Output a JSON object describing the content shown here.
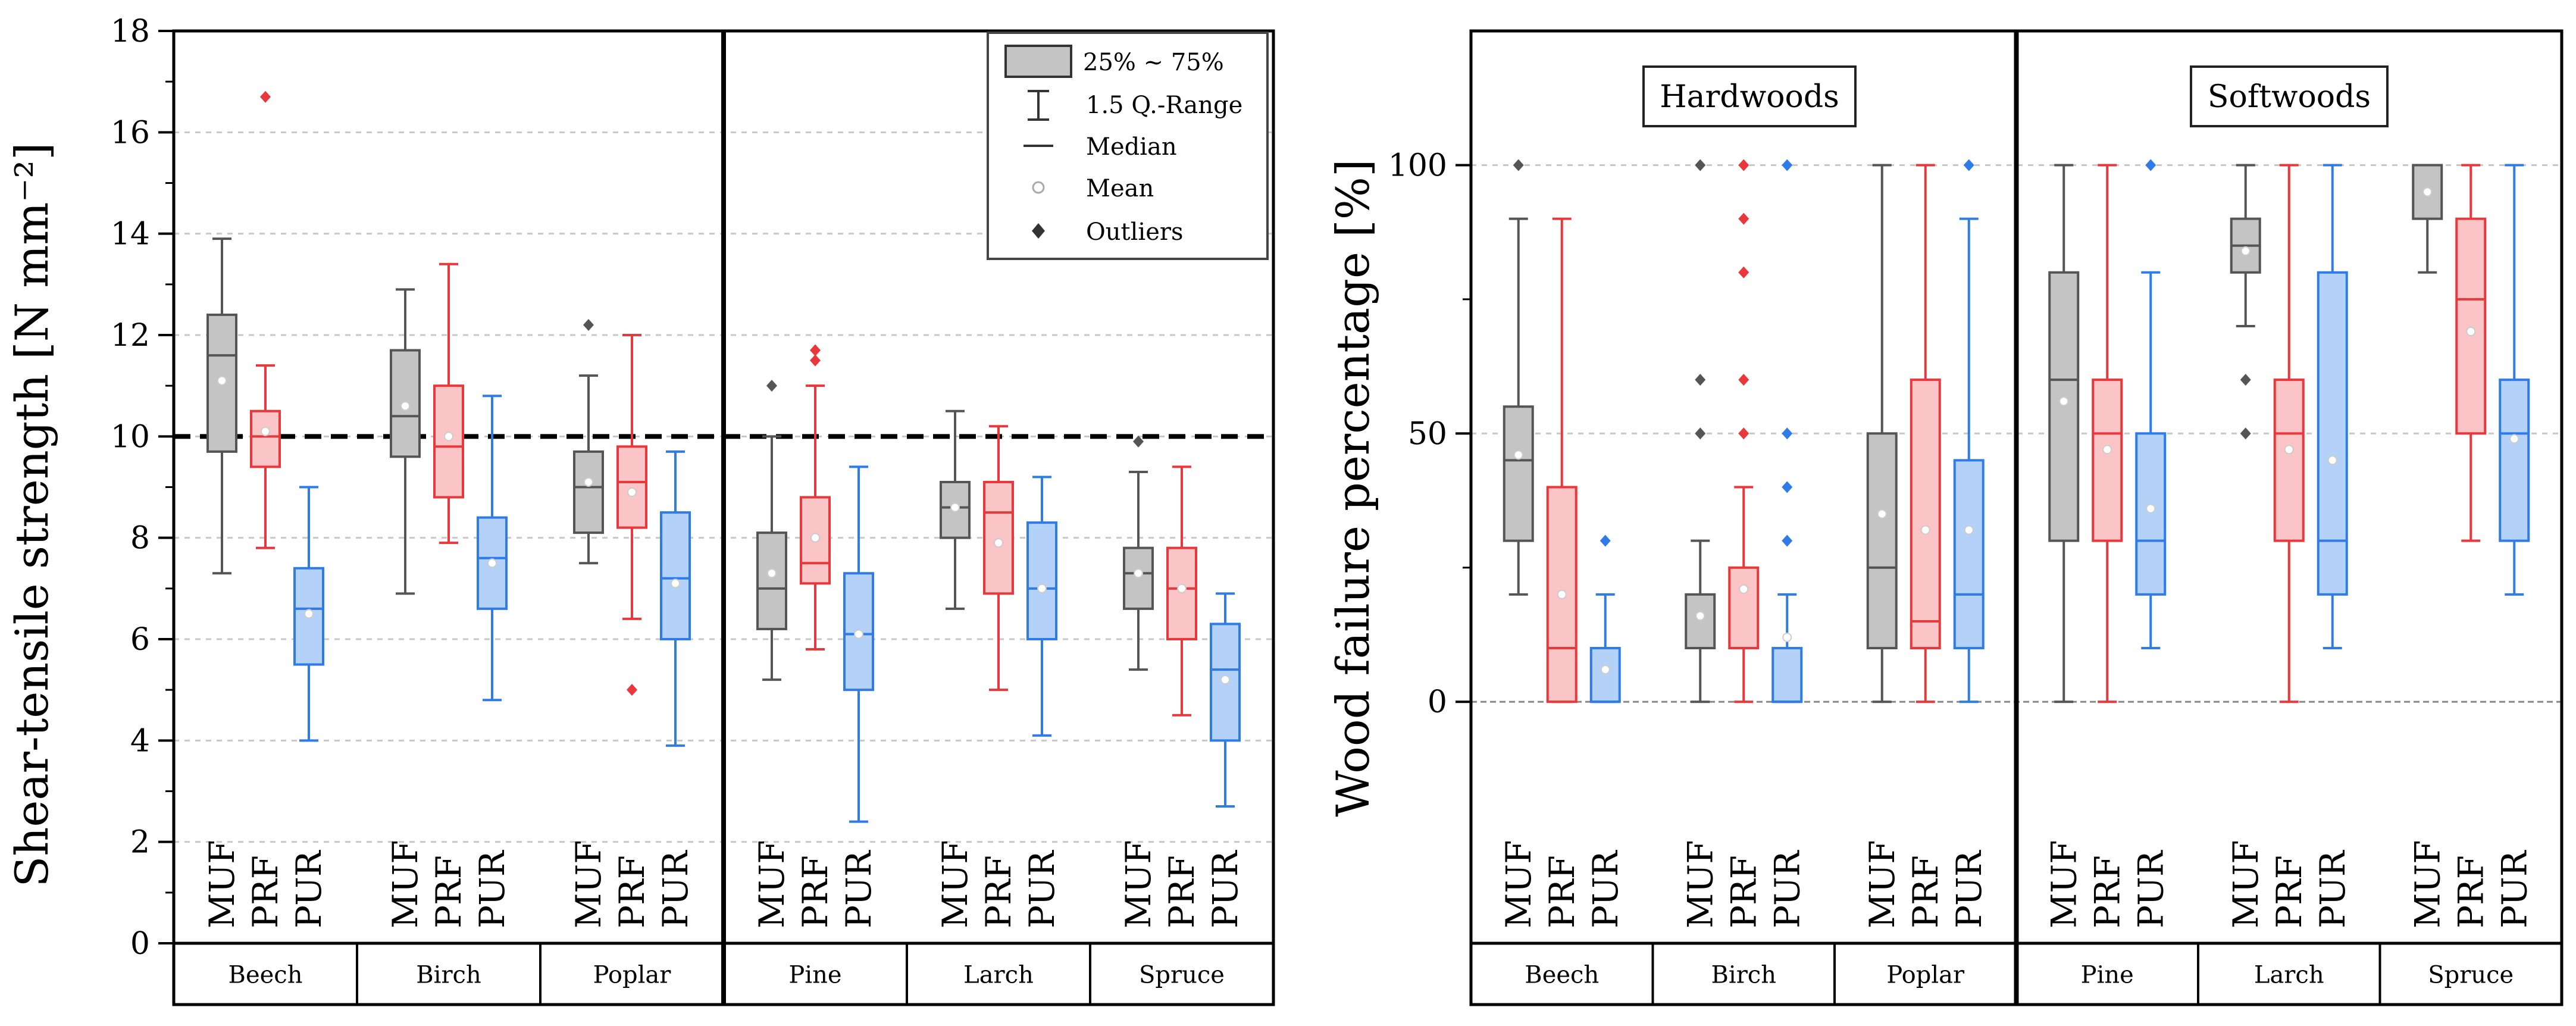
{
  "colors": {
    "MUF": "#555555",
    "PRF": "#e8383b",
    "PUR": "#2f7be8",
    "MUF_fill": "#c4c4c4",
    "PRF_fill": "#fbc4c6",
    "PUR_fill": "#b4d1f8"
  },
  "chart_data": [
    {
      "type": "boxplot",
      "ylabel": "Shear-tensile strength [N mm⁻²]",
      "ylim": [
        0,
        18
      ],
      "yticks": [
        "0",
        "2",
        "4",
        "6",
        "8",
        "10",
        "12",
        "14",
        "16",
        "18"
      ],
      "ytick_values": [
        0,
        2,
        4,
        6,
        8,
        10,
        12,
        14,
        16,
        18
      ],
      "gridlines": [
        2,
        4,
        6,
        8,
        10,
        12,
        14,
        16
      ],
      "reference_line": 10,
      "adhesives": [
        "MUF",
        "PRF",
        "PUR"
      ],
      "species": [
        "Beech",
        "Birch",
        "Poplar",
        "Pine",
        "Larch",
        "Spruce"
      ],
      "divider_after": 3,
      "legend": {
        "box_label": "25% ~ 75%",
        "whisker_label": "1.5 Q.-Range",
        "median_label": "Median",
        "mean_label": "Mean",
        "outlier_label": "Outliers"
      },
      "boxes": [
        {
          "species": "Beech",
          "adhesive": "MUF",
          "lo": 7.3,
          "q1": 9.7,
          "med": 11.6,
          "q3": 12.4,
          "hi": 13.9,
          "mean": 11.1,
          "outliers": []
        },
        {
          "species": "Beech",
          "adhesive": "PRF",
          "lo": 7.8,
          "q1": 9.4,
          "med": 10.0,
          "q3": 10.5,
          "hi": 11.4,
          "mean": 10.1,
          "outliers": [
            16.7
          ]
        },
        {
          "species": "Beech",
          "adhesive": "PUR",
          "lo": 4.0,
          "q1": 5.5,
          "med": 6.6,
          "q3": 7.4,
          "hi": 9.0,
          "mean": 6.5,
          "outliers": []
        },
        {
          "species": "Birch",
          "adhesive": "MUF",
          "lo": 6.9,
          "q1": 9.6,
          "med": 10.4,
          "q3": 11.7,
          "hi": 12.9,
          "mean": 10.6,
          "outliers": []
        },
        {
          "species": "Birch",
          "adhesive": "PRF",
          "lo": 7.9,
          "q1": 8.8,
          "med": 9.8,
          "q3": 11.0,
          "hi": 13.4,
          "mean": 10.0,
          "outliers": []
        },
        {
          "species": "Birch",
          "adhesive": "PUR",
          "lo": 4.8,
          "q1": 6.6,
          "med": 7.6,
          "q3": 8.4,
          "hi": 10.8,
          "mean": 7.5,
          "outliers": []
        },
        {
          "species": "Poplar",
          "adhesive": "MUF",
          "lo": 7.5,
          "q1": 8.1,
          "med": 9.0,
          "q3": 9.7,
          "hi": 11.2,
          "mean": 9.1,
          "outliers": [
            12.2
          ]
        },
        {
          "species": "Poplar",
          "adhesive": "PRF",
          "lo": 6.4,
          "q1": 8.2,
          "med": 9.1,
          "q3": 9.8,
          "hi": 12.0,
          "mean": 8.9,
          "outliers": [
            5.0
          ]
        },
        {
          "species": "Poplar",
          "adhesive": "PUR",
          "lo": 3.9,
          "q1": 6.0,
          "med": 7.2,
          "q3": 8.5,
          "hi": 9.7,
          "mean": 7.1,
          "outliers": []
        },
        {
          "species": "Pine",
          "adhesive": "MUF",
          "lo": 5.2,
          "q1": 6.2,
          "med": 7.0,
          "q3": 8.1,
          "hi": 10.0,
          "mean": 7.3,
          "outliers": [
            11.0
          ]
        },
        {
          "species": "Pine",
          "adhesive": "PRF",
          "lo": 5.8,
          "q1": 7.1,
          "med": 7.5,
          "q3": 8.8,
          "hi": 11.0,
          "mean": 8.0,
          "outliers": [
            11.5,
            11.7
          ]
        },
        {
          "species": "Pine",
          "adhesive": "PUR",
          "lo": 2.4,
          "q1": 5.0,
          "med": 6.1,
          "q3": 7.3,
          "hi": 9.4,
          "mean": 6.1,
          "outliers": []
        },
        {
          "species": "Larch",
          "adhesive": "MUF",
          "lo": 6.6,
          "q1": 8.0,
          "med": 8.6,
          "q3": 9.1,
          "hi": 10.5,
          "mean": 8.6,
          "outliers": []
        },
        {
          "species": "Larch",
          "adhesive": "PRF",
          "lo": 5.0,
          "q1": 6.9,
          "med": 8.5,
          "q3": 9.1,
          "hi": 10.2,
          "mean": 7.9,
          "outliers": []
        },
        {
          "species": "Larch",
          "adhesive": "PUR",
          "lo": 4.1,
          "q1": 6.0,
          "med": 7.0,
          "q3": 8.3,
          "hi": 9.2,
          "mean": 7.0,
          "outliers": []
        },
        {
          "species": "Spruce",
          "adhesive": "MUF",
          "lo": 5.4,
          "q1": 6.6,
          "med": 7.3,
          "q3": 7.8,
          "hi": 9.3,
          "mean": 7.3,
          "outliers": [
            9.9
          ]
        },
        {
          "species": "Spruce",
          "adhesive": "PRF",
          "lo": 4.5,
          "q1": 6.0,
          "med": 7.0,
          "q3": 7.8,
          "hi": 9.4,
          "mean": 7.0,
          "outliers": []
        },
        {
          "species": "Spruce",
          "adhesive": "PUR",
          "lo": 2.7,
          "q1": 4.0,
          "med": 5.4,
          "q3": 6.3,
          "hi": 6.9,
          "mean": 5.2,
          "outliers": []
        }
      ]
    },
    {
      "type": "boxplot",
      "ylabel": "Wood failure percentage [%]",
      "ylim": [
        -45,
        125
      ],
      "yticks": [
        "0",
        "50",
        "100"
      ],
      "ytick_values": [
        0,
        50,
        100
      ],
      "gridlines": [
        50,
        100
      ],
      "zero_line": 0,
      "adhesives": [
        "MUF",
        "PRF",
        "PUR"
      ],
      "species": [
        "Beech",
        "Birch",
        "Poplar",
        "Pine",
        "Larch",
        "Spruce"
      ],
      "divider_after": 3,
      "group_labels": [
        "Hardwoods",
        "Softwoods"
      ],
      "boxes": [
        {
          "species": "Beech",
          "adhesive": "MUF",
          "lo": 20,
          "q1": 30,
          "med": 45,
          "q3": 55,
          "hi": 90,
          "mean": 46,
          "outliers": [
            100
          ]
        },
        {
          "species": "Beech",
          "adhesive": "PRF",
          "lo": 0,
          "q1": 0,
          "med": 10,
          "q3": 40,
          "hi": 90,
          "mean": 20,
          "outliers": []
        },
        {
          "species": "Beech",
          "adhesive": "PUR",
          "lo": 0,
          "q1": 0,
          "med": 0,
          "q3": 10,
          "hi": 20,
          "mean": 6,
          "outliers": [
            30
          ]
        },
        {
          "species": "Birch",
          "adhesive": "MUF",
          "lo": 0,
          "q1": 10,
          "med": 10,
          "q3": 20,
          "hi": 30,
          "mean": 16,
          "outliers": [
            50,
            60,
            100
          ]
        },
        {
          "species": "Birch",
          "adhesive": "PRF",
          "lo": 0,
          "q1": 10,
          "med": 10,
          "q3": 25,
          "hi": 40,
          "mean": 21,
          "outliers": [
            50,
            60,
            80,
            90,
            100
          ]
        },
        {
          "species": "Birch",
          "adhesive": "PUR",
          "lo": 0,
          "q1": 0,
          "med": 0,
          "q3": 10,
          "hi": 20,
          "mean": 12,
          "outliers": [
            30,
            40,
            50,
            100
          ]
        },
        {
          "species": "Poplar",
          "adhesive": "MUF",
          "lo": 0,
          "q1": 10,
          "med": 25,
          "q3": 50,
          "hi": 100,
          "mean": 35,
          "outliers": []
        },
        {
          "species": "Poplar",
          "adhesive": "PRF",
          "lo": 0,
          "q1": 10,
          "med": 15,
          "q3": 60,
          "hi": 100,
          "mean": 32,
          "outliers": []
        },
        {
          "species": "Poplar",
          "adhesive": "PUR",
          "lo": 0,
          "q1": 10,
          "med": 20,
          "q3": 45,
          "hi": 90,
          "mean": 32,
          "outliers": [
            100
          ]
        },
        {
          "species": "Pine",
          "adhesive": "MUF",
          "lo": 0,
          "q1": 30,
          "med": 60,
          "q3": 80,
          "hi": 100,
          "mean": 56,
          "outliers": []
        },
        {
          "species": "Pine",
          "adhesive": "PRF",
          "lo": 0,
          "q1": 30,
          "med": 50,
          "q3": 60,
          "hi": 100,
          "mean": 47,
          "outliers": []
        },
        {
          "species": "Pine",
          "adhesive": "PUR",
          "lo": 10,
          "q1": 20,
          "med": 30,
          "q3": 50,
          "hi": 80,
          "mean": 36,
          "outliers": [
            100
          ]
        },
        {
          "species": "Larch",
          "adhesive": "MUF",
          "lo": 70,
          "q1": 80,
          "med": 85,
          "q3": 90,
          "hi": 100,
          "mean": 84,
          "outliers": [
            50,
            60
          ]
        },
        {
          "species": "Larch",
          "adhesive": "PRF",
          "lo": 0,
          "q1": 30,
          "med": 50,
          "q3": 60,
          "hi": 100,
          "mean": 47,
          "outliers": []
        },
        {
          "species": "Larch",
          "adhesive": "PUR",
          "lo": 10,
          "q1": 20,
          "med": 30,
          "q3": 80,
          "hi": 100,
          "mean": 45,
          "outliers": []
        },
        {
          "species": "Spruce",
          "adhesive": "MUF",
          "lo": 80,
          "q1": 90,
          "med": 100,
          "q3": 100,
          "hi": 100,
          "mean": 95,
          "outliers": []
        },
        {
          "species": "Spruce",
          "adhesive": "PRF",
          "lo": 30,
          "q1": 50,
          "med": 75,
          "q3": 90,
          "hi": 100,
          "mean": 69,
          "outliers": []
        },
        {
          "species": "Spruce",
          "adhesive": "PUR",
          "lo": 20,
          "q1": 30,
          "med": 50,
          "q3": 60,
          "hi": 100,
          "mean": 49,
          "outliers": []
        }
      ]
    }
  ]
}
